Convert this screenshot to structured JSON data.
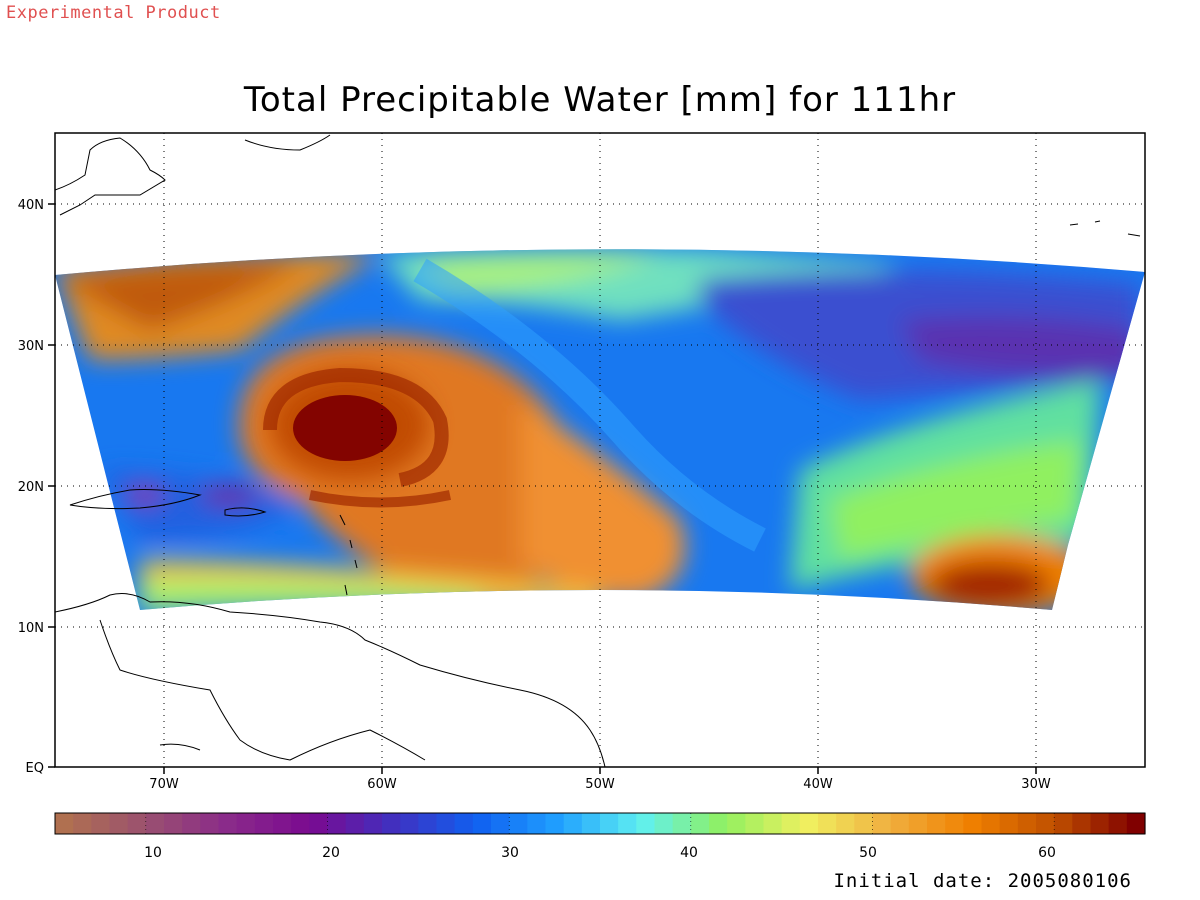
{
  "header": {
    "tag": "Experimental Product"
  },
  "map": {
    "title": "Total Precipitable Water [mm] for 111hr",
    "lon_ticks": [
      "70W",
      "60W",
      "50W",
      "40W",
      "30W"
    ],
    "lat_ticks": [
      "EQ",
      "10N",
      "20N",
      "30N",
      "40N"
    ],
    "extent": {
      "lon": [
        -75,
        -25
      ],
      "lat": [
        0,
        45
      ]
    }
  },
  "colorbar": {
    "ticks": [
      "10",
      "20",
      "30",
      "40",
      "50",
      "60"
    ],
    "range": [
      5,
      65
    ],
    "colors": [
      "#b07050",
      "#9a5070",
      "#8a2a8a",
      "#7a0a90",
      "#4030c0",
      "#1060f0",
      "#20a0ff",
      "#60f0f0",
      "#90f060",
      "#f0f060",
      "#f0b040",
      "#f08000",
      "#c05000",
      "#800000"
    ]
  },
  "footer": {
    "init_label": "Initial date: 2005080106"
  }
}
